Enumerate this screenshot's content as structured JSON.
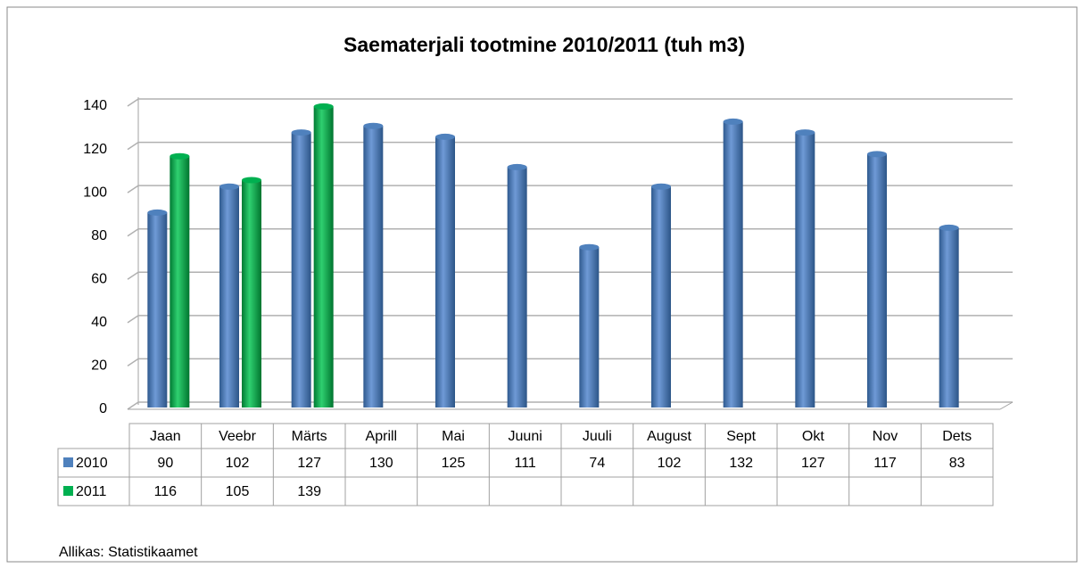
{
  "chart_data": {
    "type": "bar",
    "title": "Saematerjali tootmine 2010/2011 (tuh m3)",
    "categories": [
      "Jaan",
      "Veebr",
      "Märts",
      "Aprill",
      "Mai",
      "Juuni",
      "Juuli",
      "August",
      "Sept",
      "Okt",
      "Nov",
      "Dets"
    ],
    "series": [
      {
        "name": "2010",
        "color": "#4f81bd",
        "values": [
          90,
          102,
          127,
          130,
          125,
          111,
          74,
          102,
          132,
          127,
          117,
          83
        ]
      },
      {
        "name": "2011",
        "color": "#00b050",
        "values": [
          116,
          105,
          139,
          null,
          null,
          null,
          null,
          null,
          null,
          null,
          null,
          null
        ]
      }
    ],
    "ylim": [
      0,
      140
    ],
    "yticks": [
      0,
      20,
      40,
      60,
      80,
      100,
      120,
      140
    ],
    "grid": true,
    "source": "Allikas: Statistikaamet"
  }
}
